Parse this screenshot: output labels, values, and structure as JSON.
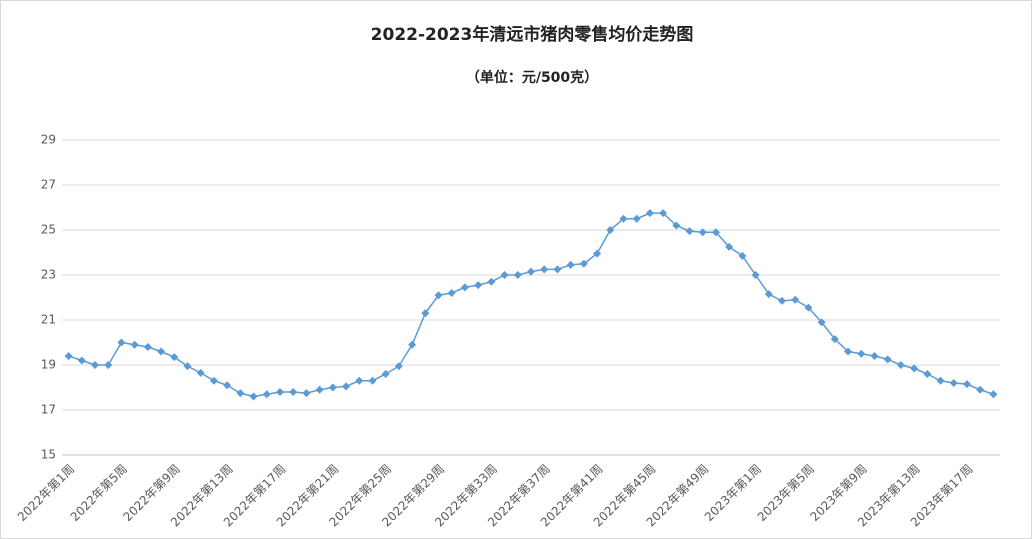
{
  "chart_data": {
    "type": "line",
    "title": "2022-2023年清远市猪肉零售均价走势图",
    "subtitle": "（单位：元/500克）",
    "categories": [
      "2022年第1周",
      null,
      null,
      null,
      "2022年第5周",
      null,
      null,
      null,
      "2022年第9周",
      null,
      null,
      null,
      "2022年第13周",
      null,
      null,
      null,
      "2022年第17周",
      null,
      null,
      null,
      "2022年第21周",
      null,
      null,
      null,
      "2022年第25周",
      null,
      null,
      null,
      "2022年第29周",
      null,
      null,
      null,
      "2022年第33周",
      null,
      null,
      null,
      "2022年第37周",
      null,
      null,
      null,
      "2022年第41周",
      null,
      null,
      null,
      "2022年第45周",
      null,
      null,
      null,
      "2022年第49周",
      null,
      null,
      null,
      "2023年第1周",
      null,
      null,
      null,
      "2023年第5周",
      null,
      null,
      null,
      "2023年第9周",
      null,
      null,
      null,
      "2023年第13周",
      null,
      null,
      null,
      "2023年第17周",
      null,
      null
    ],
    "values": [
      19.4,
      19.2,
      19.0,
      19.0,
      20.0,
      19.9,
      19.8,
      19.6,
      19.35,
      18.95,
      18.65,
      18.3,
      18.1,
      17.75,
      17.6,
      17.7,
      17.8,
      17.8,
      17.75,
      17.9,
      18.0,
      18.05,
      18.3,
      18.3,
      18.6,
      18.95,
      19.9,
      21.3,
      22.1,
      22.2,
      22.45,
      22.55,
      22.7,
      23.0,
      23.0,
      23.15,
      23.25,
      23.25,
      23.45,
      23.5,
      23.95,
      25.0,
      25.5,
      25.5,
      25.75,
      25.75,
      25.2,
      24.95,
      24.9,
      24.9,
      24.25,
      23.85,
      23.0,
      22.15,
      21.85,
      21.9,
      21.55,
      20.9,
      20.15,
      19.6,
      19.5,
      19.4,
      19.25,
      19.0,
      18.85,
      18.6,
      18.3,
      18.2,
      18.15,
      17.9,
      17.7
    ],
    "color": "#5b9bd5",
    "ylim": [
      15,
      29
    ],
    "yticks": [
      15,
      17,
      19,
      21,
      23,
      25,
      27,
      29
    ],
    "grid": true
  }
}
